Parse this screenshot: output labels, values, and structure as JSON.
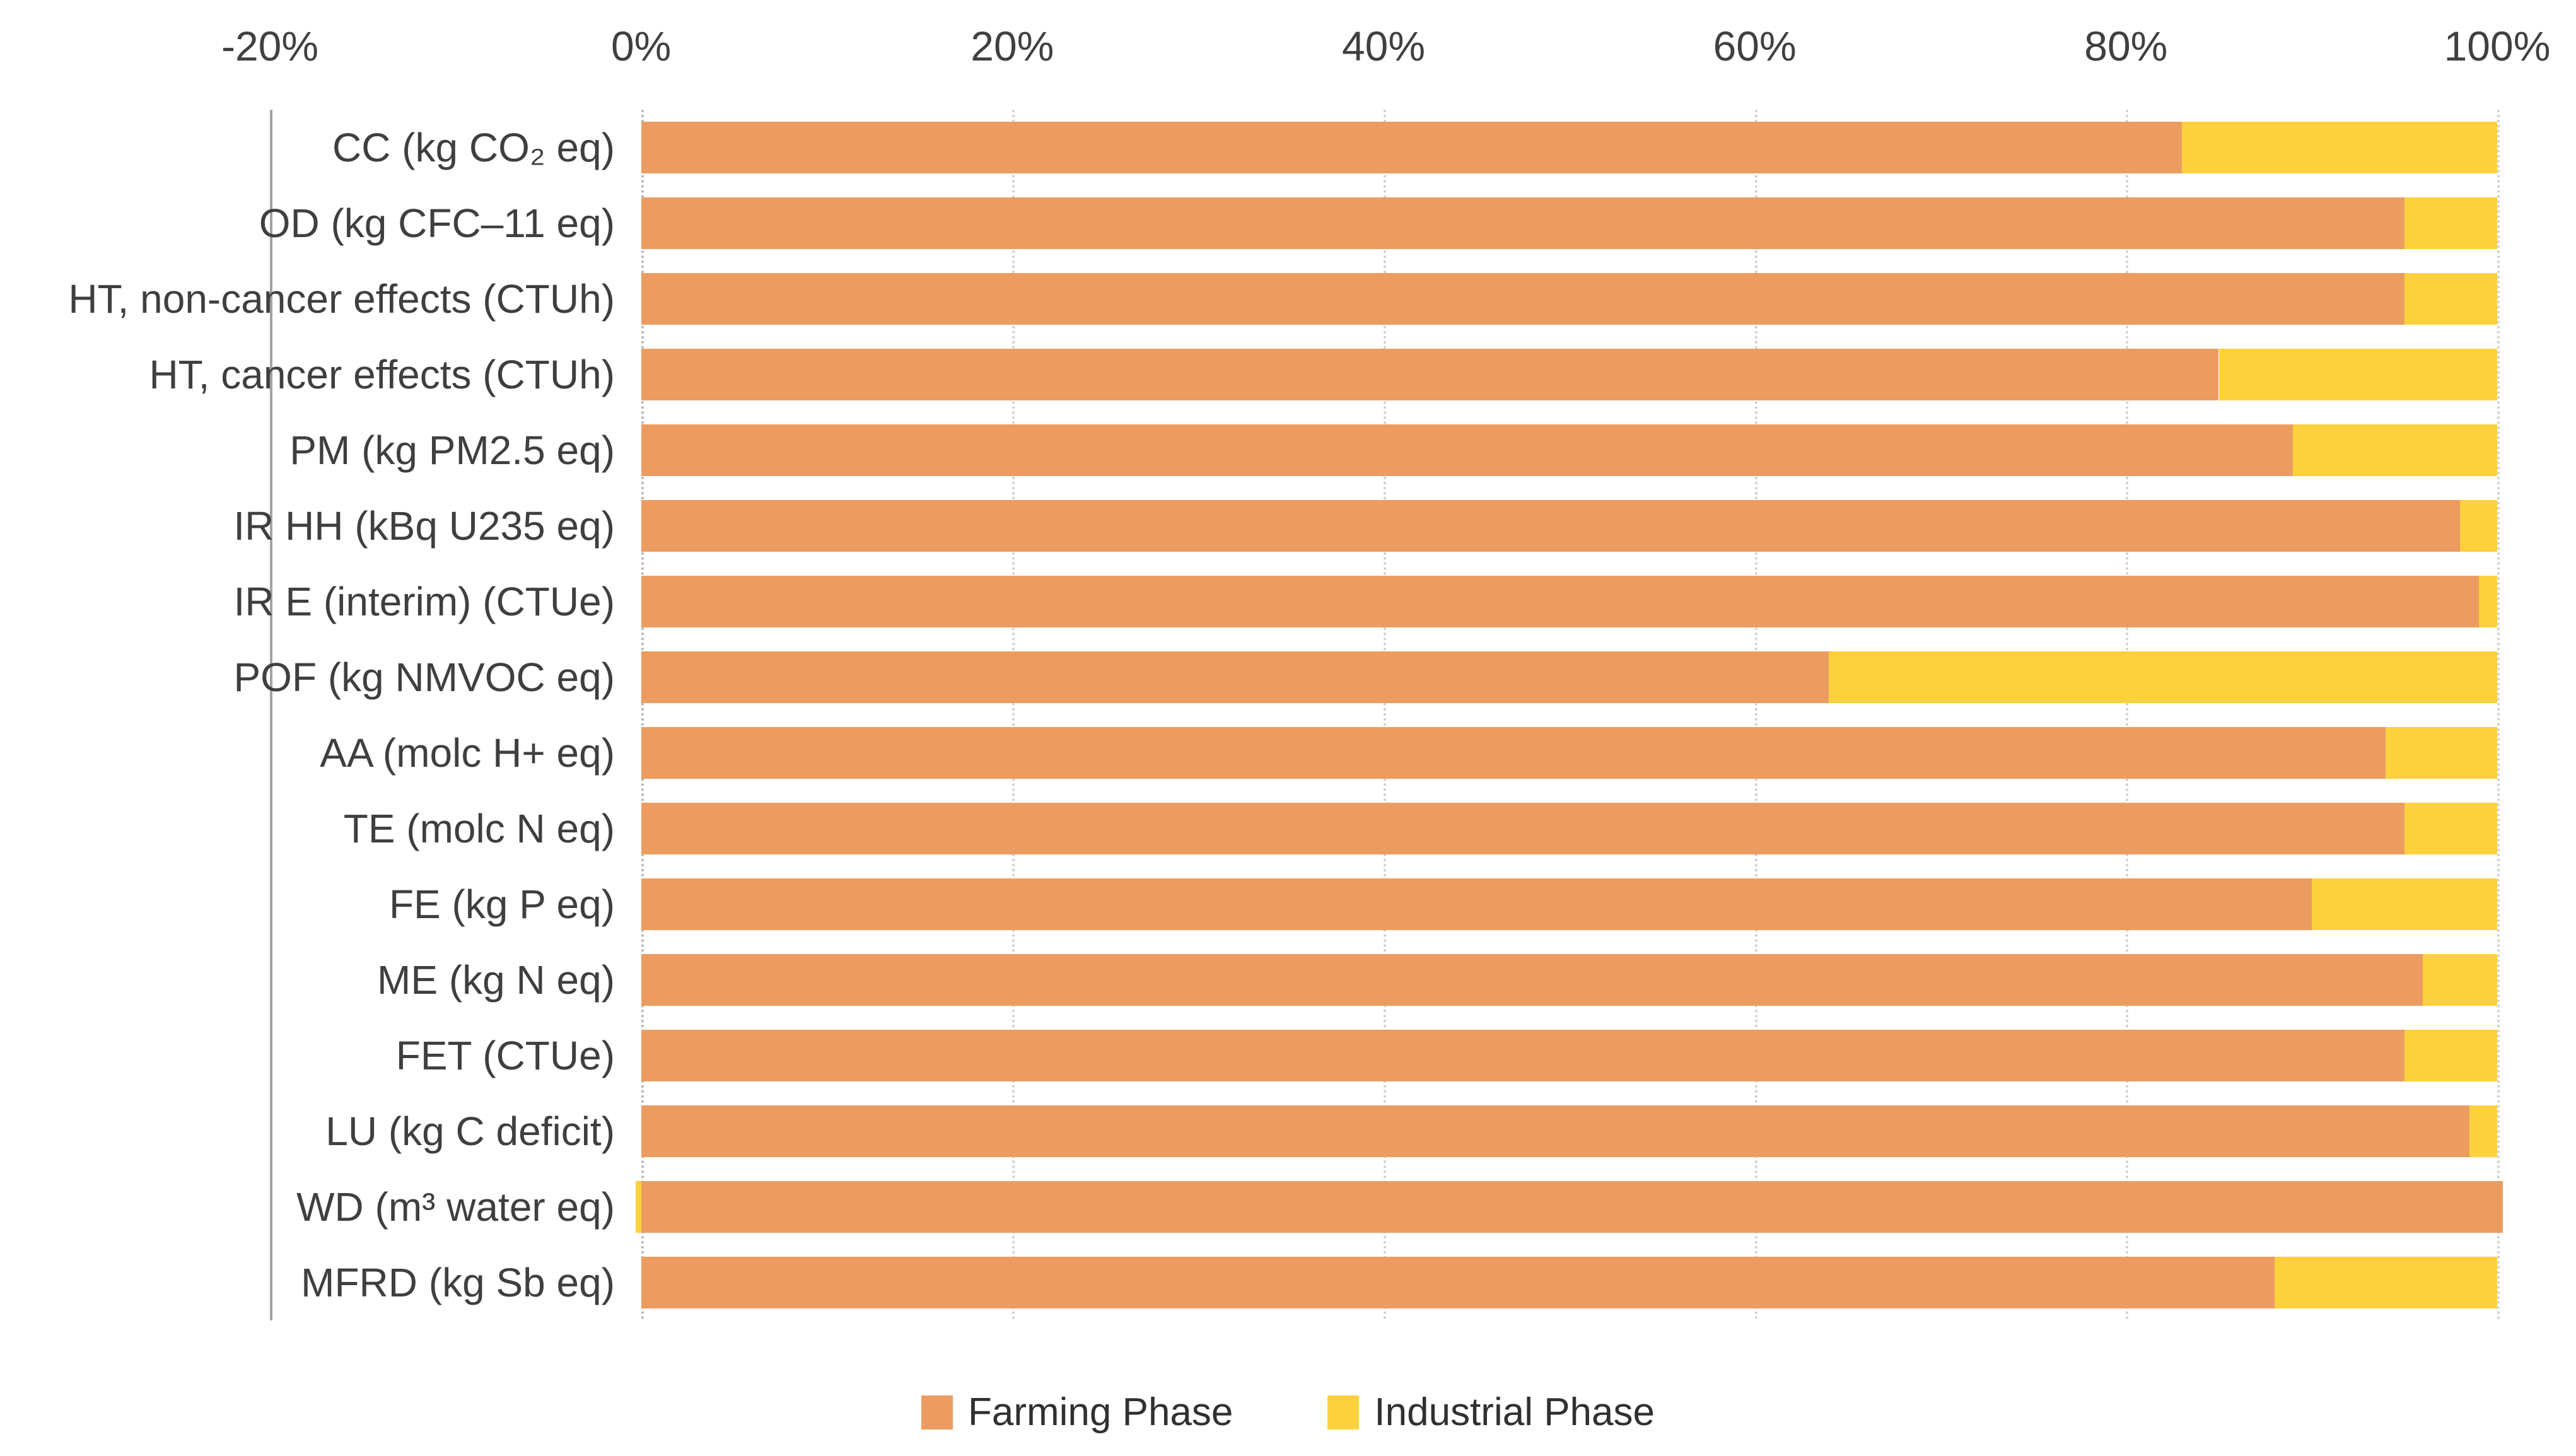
{
  "chart_data": {
    "type": "bar",
    "orientation": "horizontal-stacked",
    "title": "",
    "xlabel": "",
    "ylabel": "",
    "categories": [
      "CC (kg CO₂ eq)",
      "OD (kg CFC–11 eq)",
      "HT, non-cancer effects (CTUh)",
      "HT, cancer effects (CTUh)",
      "PM (kg PM2.5 eq)",
      "IR HH (kBq U235 eq)",
      "IR E (interim) (CTUe)",
      "POF (kg NMVOC eq)",
      "AA (molc H+ eq)",
      "TE (molc N eq)",
      "FE (kg P eq)",
      "ME (kg N eq)",
      "FET (CTUe)",
      "LU (kg C deficit)",
      "WD (m³ water eq)",
      "MFRD (kg Sb eq)"
    ],
    "series": [
      {
        "name": "Farming Phase",
        "color": "#EC9C60",
        "values": [
          83,
          95,
          95,
          85,
          89,
          98,
          99,
          64,
          94,
          95,
          90,
          96,
          95,
          98.5,
          100.3,
          88
        ]
      },
      {
        "name": "Industrial Phase",
        "color": "#FDD13D",
        "values": [
          17,
          5,
          5,
          15,
          11,
          2,
          1,
          36,
          6,
          5,
          10,
          4,
          5,
          1.5,
          -0.3,
          12
        ]
      }
    ],
    "x_axis": {
      "min": -20,
      "max": 100,
      "tick_step": 20,
      "tick_labels": [
        "-20%",
        "0%",
        "20%",
        "40%",
        "60%",
        "80%",
        "100%"
      ],
      "position": "top",
      "format": "percent"
    },
    "grid": "vertical-dotted",
    "legend": {
      "position": "bottom",
      "entries": [
        "Farming Phase",
        "Industrial Phase"
      ]
    },
    "colors": {
      "farming": "#EC9C60",
      "industrial": "#FDD13D",
      "text": "#3f3f3f",
      "gridline": "#cfcfcf",
      "axis_edge": "#a3a3a3",
      "background": "#ffffff"
    }
  }
}
